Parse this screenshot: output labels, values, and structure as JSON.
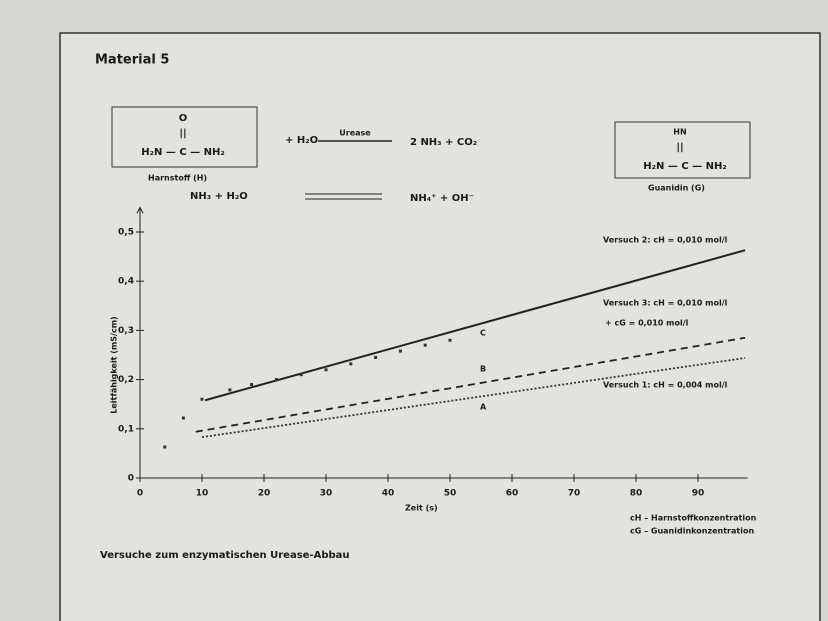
{
  "chart_data": {
    "type": "line",
    "header": "Material 5",
    "title": "Versuche zum enzymatischen Urease-Abbau",
    "xlabel": "Zeit (s)",
    "ylabel": "Leitfähigkeit (mS/cm)",
    "xlim": [
      0,
      98
    ],
    "ylim": [
      0,
      0.55
    ],
    "xticks": [
      0,
      10,
      20,
      30,
      40,
      50,
      60,
      70,
      80,
      90
    ],
    "yticks": [
      0,
      {
        "value": 0.1,
        "label": "0,1"
      },
      {
        "value": 0.2,
        "label": "0,2"
      },
      {
        "value": 0.3,
        "label": "0,3"
      },
      {
        "value": 0.4,
        "label": "0,4"
      },
      {
        "value": 0.5,
        "label": "0,5"
      }
    ],
    "series": [
      {
        "name": "Versuch 2: cH = 0,010 mol/l",
        "color": "#222222",
        "dash": "solid",
        "x": [
          10.5,
          97.6
        ],
        "values": [
          0.158,
          0.463
        ]
      },
      {
        "name": "Versuch 3: cH = 0,010 mol/l",
        "color": "#222222",
        "dash": "dashed",
        "x": [
          9,
          97.6
        ],
        "values": [
          0.094,
          0.285
        ]
      },
      {
        "name": "Versuch 1: cH = 0,004 mol/l",
        "color": "#333333",
        "dash": "dotted",
        "x": [
          10,
          97.6
        ],
        "values": [
          0.083,
          0.244
        ]
      }
    ],
    "points": {
      "color": "#333333",
      "x": [
        4,
        7,
        10,
        14.5,
        18,
        22,
        26,
        30,
        34,
        38,
        42,
        46,
        50
      ],
      "values": [
        0.063,
        0.122,
        0.16,
        0.179,
        0.19,
        0.2,
        0.21,
        0.22,
        0.232,
        0.245,
        0.258,
        0.27,
        0.28
      ]
    },
    "series3_extra": "+ cG = 0,010 mol/l",
    "point_labels": [
      "A",
      "B",
      "C"
    ],
    "legend_notes": [
      "cH – Harnstoffkonzentration",
      "cG – Guanidinkonzentration"
    ],
    "formulas": {
      "urea_top": "O",
      "urea_bond": "||",
      "urea": "H₂N — C — NH₂",
      "urea_name": "Harnstoff (H)",
      "reaction1": "+ H₂O",
      "enzyme": "Urease",
      "products1": "2 NH₃ + CO₂",
      "reaction2": "NH₃ + H₂O",
      "products2": "NH₄⁺ + OH⁻",
      "guanidine_top": "HN",
      "guanidine_bond": "||",
      "guanidine": "H₂N — C — NH₂",
      "guanidine_name": "Guanidin (G)"
    }
  }
}
